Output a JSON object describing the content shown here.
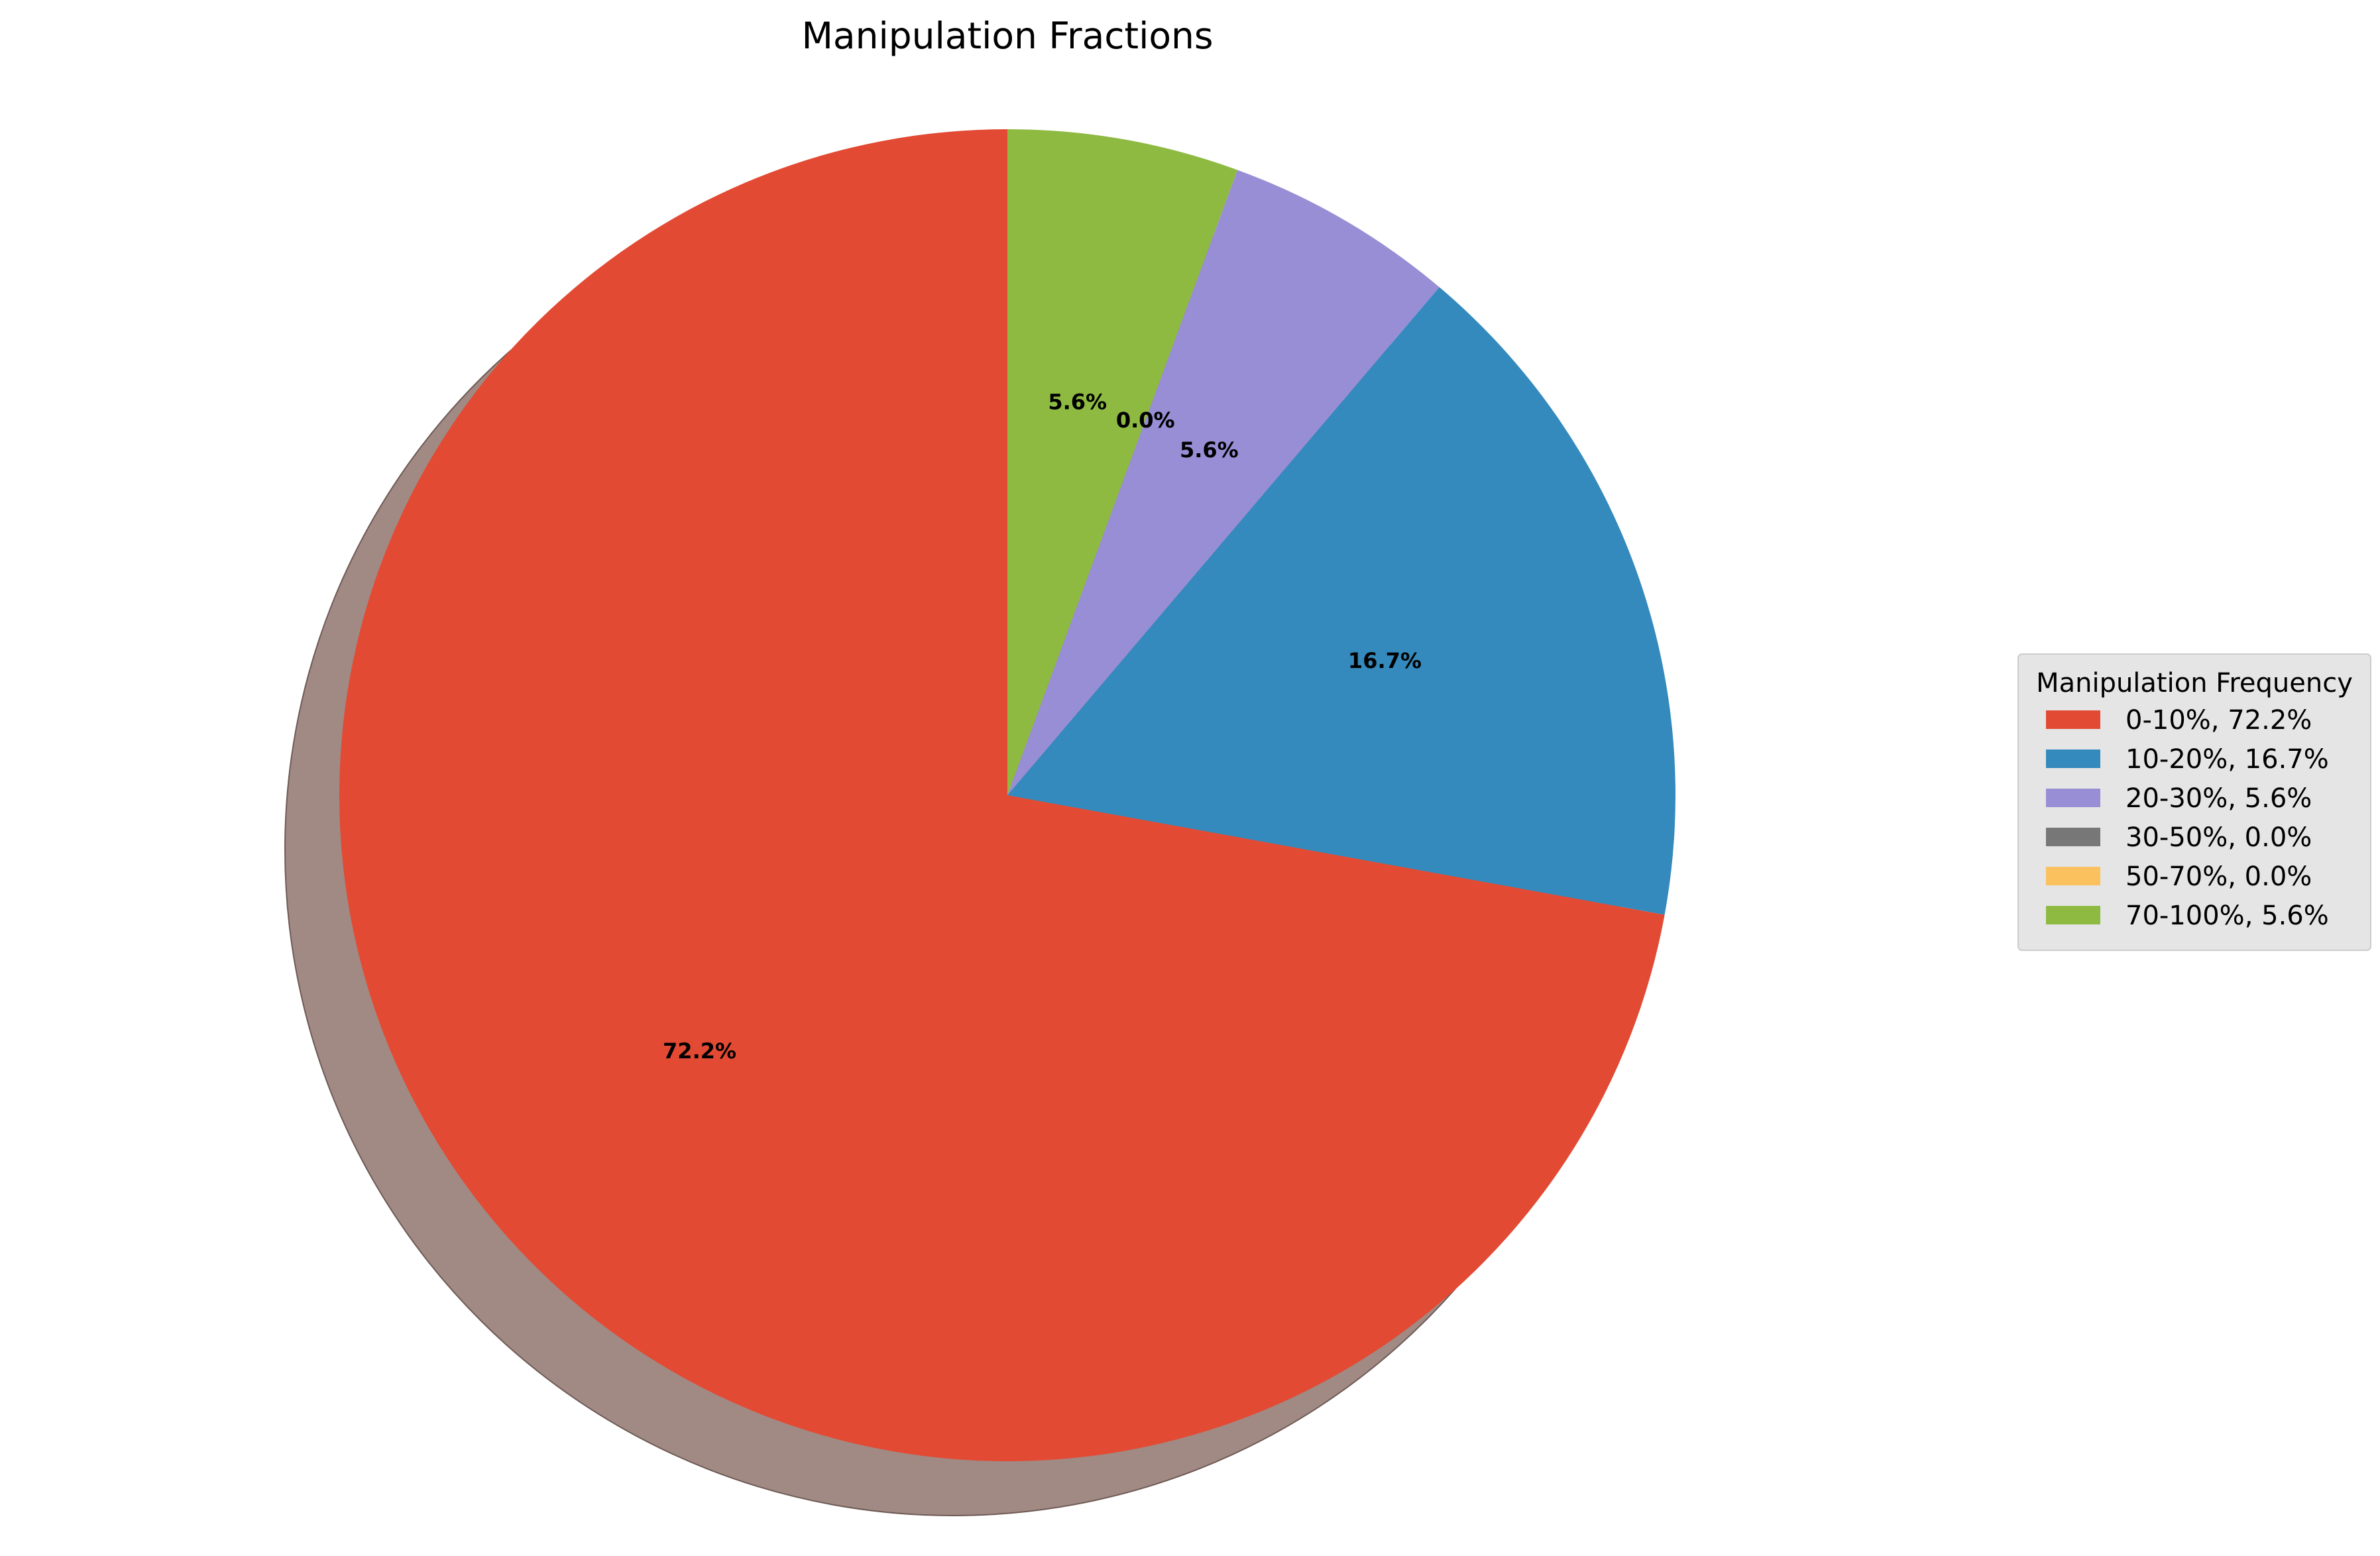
{
  "chart_data": {
    "type": "pie",
    "title": "Manipulation Fractions",
    "categories": [
      "0-10%",
      "10-20%",
      "20-30%",
      "30-50%",
      "50-70%",
      "70-100%"
    ],
    "values": [
      72.2,
      16.7,
      5.6,
      0.0,
      0.0,
      5.6
    ],
    "slice_labels": [
      "72.2%",
      "16.7%",
      "5.6%",
      "0.0%",
      "0.0%",
      "5.6%"
    ],
    "colors": [
      "#E24A33",
      "#348ABD",
      "#988ED5",
      "#777777",
      "#FBC15E",
      "#8EBA42"
    ],
    "start_angle_deg": 90,
    "direction": "counterclockwise-from-top (0-10% sweeps left)",
    "shadow": true,
    "shadow_color": "#A18A84",
    "legend": {
      "title": "Manipulation Frequency",
      "placement": "center-right",
      "entries": [
        "0-10%, 72.2%",
        "10-20%, 16.7%",
        "20-30%, 5.6%",
        "30-50%, 0.0%",
        "50-70%, 0.0%",
        "70-100%, 5.6%"
      ]
    }
  }
}
